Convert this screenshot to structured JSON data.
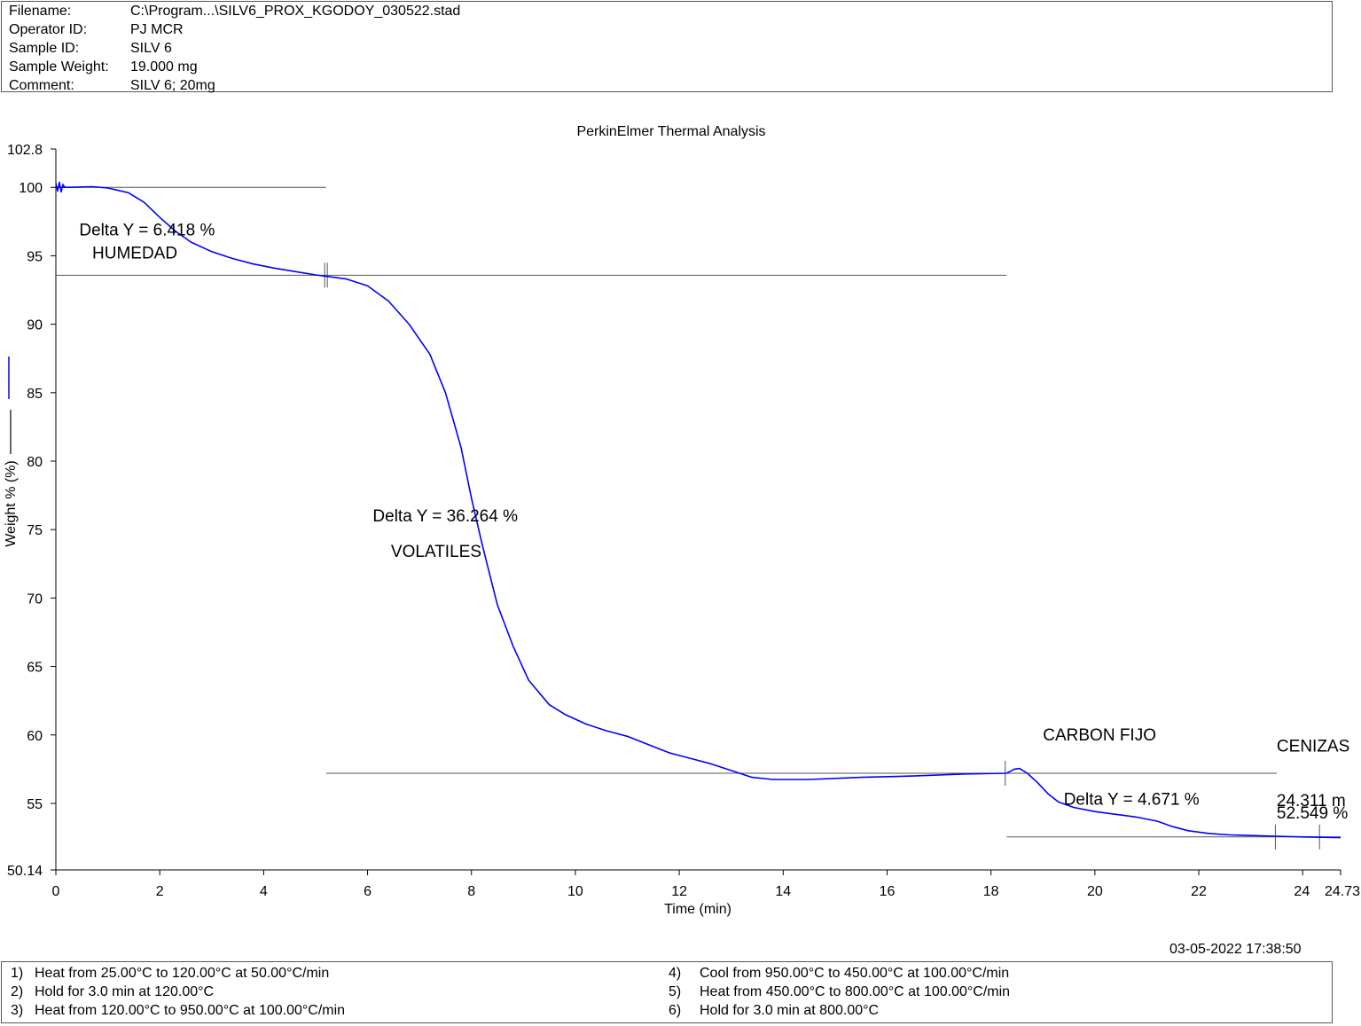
{
  "header": {
    "rows": [
      {
        "label": "Filename:",
        "value": "C:\\Program...\\SILV6_PROX_KGODOY_030522.stad"
      },
      {
        "label": "Operator ID:",
        "value": "PJ MCR"
      },
      {
        "label": "Sample ID:",
        "value": "SILV 6"
      },
      {
        "label": "Sample Weight:",
        "value": "19.000 mg"
      },
      {
        "label": "Comment:",
        "value": "SILV 6; 20mg"
      }
    ]
  },
  "timestamp": "03-05-2022 17:38:50",
  "method_steps": [
    {
      "num": "1)",
      "text": "Heat from 25.00°C to 120.00°C at 50.00°C/min"
    },
    {
      "num": "2)",
      "text": "Hold for 3.0 min at 120.00°C"
    },
    {
      "num": "3)",
      "text": "Heat from 120.00°C to 950.00°C at 100.00°C/min"
    },
    {
      "num": "4)",
      "text": "Cool from 950.00°C to 450.00°C at 100.00°C/min"
    },
    {
      "num": "5)",
      "text": "Heat from 450.00°C to 800.00°C at 100.00°C/min"
    },
    {
      "num": "6)",
      "text": "Hold for 3.0 min at 800.00°C"
    }
  ],
  "chart_data": {
    "type": "line",
    "title": "PerkinElmer Thermal Analysis",
    "xlabel": "Time (min)",
    "ylabel": "Weight % (%)",
    "xlim": [
      0,
      24.73
    ],
    "ylim": [
      50.14,
      102.8
    ],
    "x_ticks": [
      {
        "v": 0,
        "label": "0"
      },
      {
        "v": 2,
        "label": "2"
      },
      {
        "v": 4,
        "label": "4"
      },
      {
        "v": 6,
        "label": "6"
      },
      {
        "v": 8,
        "label": "8"
      },
      {
        "v": 10,
        "label": "10"
      },
      {
        "v": 12,
        "label": "12"
      },
      {
        "v": 14,
        "label": "14"
      },
      {
        "v": 16,
        "label": "16"
      },
      {
        "v": 18,
        "label": "18"
      },
      {
        "v": 20,
        "label": "20"
      },
      {
        "v": 22,
        "label": "22"
      },
      {
        "v": 24,
        "label": "24"
      },
      {
        "v": 24.73,
        "label": "24.73"
      }
    ],
    "y_ticks": [
      {
        "v": 102.8,
        "label": "102.8"
      },
      {
        "v": 100,
        "label": "100"
      },
      {
        "v": 95,
        "label": "95"
      },
      {
        "v": 90,
        "label": "90"
      },
      {
        "v": 85,
        "label": "85"
      },
      {
        "v": 80,
        "label": "80"
      },
      {
        "v": 75,
        "label": "75"
      },
      {
        "v": 70,
        "label": "70"
      },
      {
        "v": 65,
        "label": "65"
      },
      {
        "v": 60,
        "label": "60"
      },
      {
        "v": 55,
        "label": "55"
      },
      {
        "v": 50.14,
        "label": "50.14"
      }
    ],
    "grid": false,
    "series": [
      {
        "color": "#0000ff",
        "x": [
          0,
          0.1,
          0.3,
          0.7,
          1.0,
          1.4,
          1.7,
          2.0,
          2.3,
          2.6,
          3.0,
          3.4,
          3.8,
          4.2,
          4.6,
          5.0,
          5.2,
          5.6,
          6.0,
          6.4,
          6.8,
          7.2,
          7.5,
          7.8,
          8.0,
          8.2,
          8.3,
          8.5,
          8.8,
          9.1,
          9.5,
          9.8,
          10.2,
          10.6,
          11.0,
          11.4,
          11.8,
          12.2,
          12.6,
          13.0,
          13.4,
          13.8,
          14.5,
          15.5,
          16.5,
          17.5,
          18.3,
          18.45,
          18.55,
          18.7,
          18.9,
          19.1,
          19.3,
          19.6,
          20.0,
          20.4,
          20.8,
          21.2,
          21.5,
          21.8,
          22.2,
          22.6,
          23.0,
          23.5,
          24.0,
          24.73
        ],
        "y": [
          100.0,
          100.0,
          100.0,
          100.05,
          99.95,
          99.6,
          98.9,
          97.8,
          96.8,
          96.0,
          95.3,
          94.8,
          94.4,
          94.1,
          93.85,
          93.6,
          93.5,
          93.3,
          92.8,
          91.7,
          90.0,
          87.8,
          85.0,
          81.0,
          77.3,
          74.0,
          72.5,
          69.5,
          66.5,
          64.0,
          62.2,
          61.5,
          60.8,
          60.3,
          59.9,
          59.3,
          58.7,
          58.3,
          57.9,
          57.4,
          56.9,
          56.75,
          56.75,
          56.9,
          57.0,
          57.15,
          57.2,
          57.5,
          57.55,
          57.2,
          56.5,
          55.7,
          55.1,
          54.7,
          54.4,
          54.2,
          54.0,
          53.7,
          53.3,
          53.0,
          52.8,
          52.7,
          52.65,
          52.6,
          52.55,
          52.5
        ]
      }
    ],
    "annotations": [
      {
        "text": "Delta Y = 6.418 %",
        "x": 0.45,
        "y": 96.5
      },
      {
        "text": "HUMEDAD",
        "x": 0.7,
        "y": 94.8
      },
      {
        "text": "Delta Y = 36.264 %",
        "x": 6.1,
        "y": 75.6
      },
      {
        "text": "VOLATILES",
        "x": 6.45,
        "y": 73.0
      },
      {
        "text": "CARBON FIJO",
        "x": 19.0,
        "y": 59.6
      },
      {
        "text": "CENIZAS",
        "x": 23.5,
        "y": 58.8
      },
      {
        "text": "Delta Y = 4.671 %",
        "x": 19.4,
        "y": 54.9
      },
      {
        "text": "24.311 m",
        "x": 23.5,
        "y": 54.8
      },
      {
        "text": "52.549 %",
        "x": 23.5,
        "y": 53.9
      }
    ],
    "baselines": [
      {
        "y": 100.0,
        "x0": 0,
        "x1": 5.2
      },
      {
        "y": 93.58,
        "x0": 0,
        "x1": 18.3
      },
      {
        "y": 57.2,
        "x0": 5.2,
        "x1": 23.5
      },
      {
        "y": 52.55,
        "x0": 18.3,
        "x1": 24.73
      }
    ],
    "step_markers": [
      5.2,
      18.3,
      23.5,
      24.35
    ]
  }
}
